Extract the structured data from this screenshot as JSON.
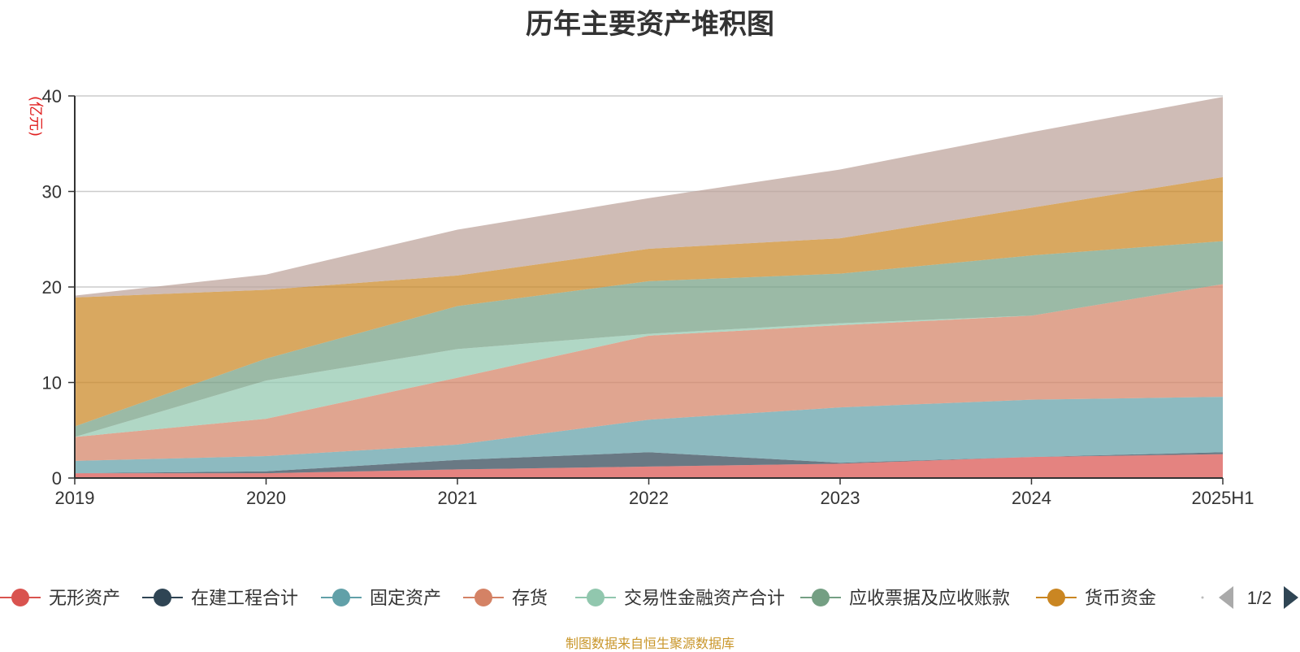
{
  "title": "历年主要资产堆积图",
  "footer": "制图数据来自恒生聚源数据库",
  "chart_data": {
    "type": "area",
    "stacked": true,
    "title": "历年主要资产堆积图",
    "ylabel": "(亿元)",
    "xlabel": "",
    "ylim": [
      0,
      40
    ],
    "yticks": [
      0,
      10,
      20,
      30,
      40
    ],
    "grid": true,
    "categories": [
      "2019",
      "2020",
      "2021",
      "2022",
      "2023",
      "2024",
      "2025H1"
    ],
    "series": [
      {
        "name": "无形资产",
        "color": "#d9534f",
        "values": [
          0.5,
          0.5,
          0.9,
          1.2,
          1.5,
          2.2,
          2.5
        ]
      },
      {
        "name": "在建工程合计",
        "color": "#2f4554",
        "values": [
          0.0,
          0.2,
          1.0,
          1.5,
          0.1,
          0.0,
          0.2
        ]
      },
      {
        "name": "固定资产",
        "color": "#61a0a8",
        "values": [
          1.3,
          1.6,
          1.6,
          3.4,
          5.8,
          6.0,
          5.8
        ]
      },
      {
        "name": "存货",
        "color": "#d48265",
        "values": [
          2.5,
          3.9,
          7.0,
          8.8,
          8.6,
          8.8,
          11.8
        ]
      },
      {
        "name": "交易性金融资产合计",
        "color": "#91c7ae",
        "values": [
          0.0,
          4.0,
          3.0,
          0.2,
          0.2,
          0.0,
          0.0
        ]
      },
      {
        "name": "应收票据及应收账款",
        "color": "#749f83",
        "values": [
          1.1,
          2.3,
          4.5,
          5.5,
          5.2,
          6.3,
          4.5
        ]
      },
      {
        "name": "货币资金",
        "color": "#ca8622",
        "values": [
          13.5,
          7.2,
          3.2,
          3.4,
          3.7,
          5.0,
          6.7
        ]
      },
      {
        "name": "",
        "color": "#bda29a",
        "values": [
          0.2,
          1.6,
          4.8,
          5.3,
          7.2,
          7.9,
          8.4
        ]
      }
    ],
    "legend": {
      "placement": "bottom",
      "page": "1/2",
      "visible_items": [
        "无形资产",
        "在建工程合计",
        "固定资产",
        "存货",
        "交易性金融资产合计",
        "应收票据及应收账款",
        "货币资金"
      ]
    }
  }
}
